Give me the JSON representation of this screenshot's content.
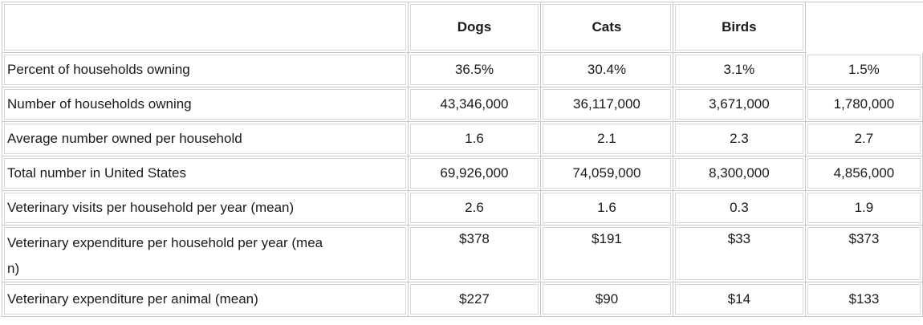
{
  "columns": [
    "Dogs",
    "Cats",
    "Birds",
    ""
  ],
  "rows": [
    {
      "label": "Percent of households owning",
      "values": [
        "36.5%",
        "30.4%",
        "3.1%",
        "1.5%"
      ]
    },
    {
      "label": "Number of households owning",
      "values": [
        "43,346,000",
        "36,117,000",
        "3,671,000",
        "1,780,000"
      ]
    },
    {
      "label": "Average number owned per household",
      "values": [
        "1.6",
        "2.1",
        "2.3",
        "2.7"
      ]
    },
    {
      "label": "Total number in United States",
      "values": [
        "69,926,000",
        "74,059,000",
        "8,300,000",
        "4,856,000"
      ]
    },
    {
      "label": "Veterinary visits per household per year (mean)",
      "values": [
        "2.6",
        "1.6",
        "0.3",
        "1.9"
      ]
    },
    {
      "label": "Veterinary expenditure per household per year (mea\nn)",
      "values": [
        "$378",
        "$191",
        "$33",
        "$373"
      ]
    },
    {
      "label": "Veterinary expenditure per animal (mean)",
      "values": [
        "$227",
        "$90",
        "$14",
        "$133"
      ]
    }
  ]
}
